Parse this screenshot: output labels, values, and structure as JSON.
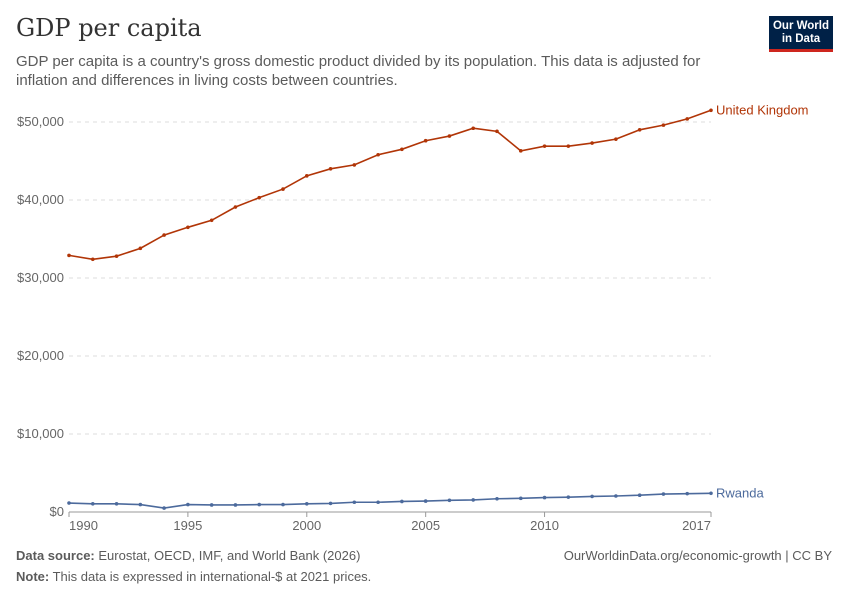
{
  "header": {
    "title": "GDP per capita",
    "subtitle": "GDP per capita is a country's gross domestic product divided by its population. This data is adjusted for inflation and differences in living costs between countries.",
    "logo": "Our World in Data"
  },
  "footer": {
    "source_label": "Data source:",
    "source": "Eurostat, OECD, IMF, and World Bank (2026)",
    "url": "OurWorldinData.org/economic-growth | CC BY",
    "note_label": "Note:",
    "note": "This data is expressed in international-$ at 2021 prices."
  },
  "chart_data": {
    "type": "line",
    "x": [
      1990,
      1991,
      1992,
      1993,
      1994,
      1995,
      1996,
      1997,
      1998,
      1999,
      2000,
      2001,
      2002,
      2003,
      2004,
      2005,
      2006,
      2007,
      2008,
      2009,
      2010,
      2011,
      2012,
      2013,
      2014,
      2015,
      2016,
      2017
    ],
    "series": [
      {
        "name": "United Kingdom",
        "color": "#b13507",
        "values": [
          32900,
          32400,
          32800,
          33800,
          35500,
          36500,
          37400,
          39100,
          40300,
          41400,
          43100,
          44000,
          44500,
          45800,
          46500,
          47600,
          48200,
          49200,
          48800,
          46300,
          46900,
          46900,
          47300,
          47800,
          49000,
          49600,
          50400,
          51500
        ]
      },
      {
        "name": "Rwanda",
        "color": "#4c6a9c",
        "values": [
          1150,
          1050,
          1050,
          950,
          500,
          950,
          900,
          900,
          950,
          950,
          1050,
          1100,
          1250,
          1250,
          1350,
          1400,
          1500,
          1550,
          1700,
          1750,
          1850,
          1900,
          2000,
          2050,
          2150,
          2300,
          2350,
          2400
        ]
      }
    ],
    "yticks": [
      "$0",
      "$10,000",
      "$20,000",
      "$30,000",
      "$40,000",
      "$50,000"
    ],
    "ytick_values": [
      0,
      10000,
      20000,
      30000,
      40000,
      50000
    ],
    "xticks": [
      "1990",
      "1995",
      "2000",
      "2005",
      "2010",
      "2017"
    ],
    "xtick_values": [
      1990,
      1995,
      2000,
      2005,
      2010,
      2017
    ],
    "xlim": [
      1990,
      2017
    ],
    "ylim": [
      0,
      50000
    ],
    "grid": "horizontal dashed",
    "legend": "line-end labels"
  }
}
